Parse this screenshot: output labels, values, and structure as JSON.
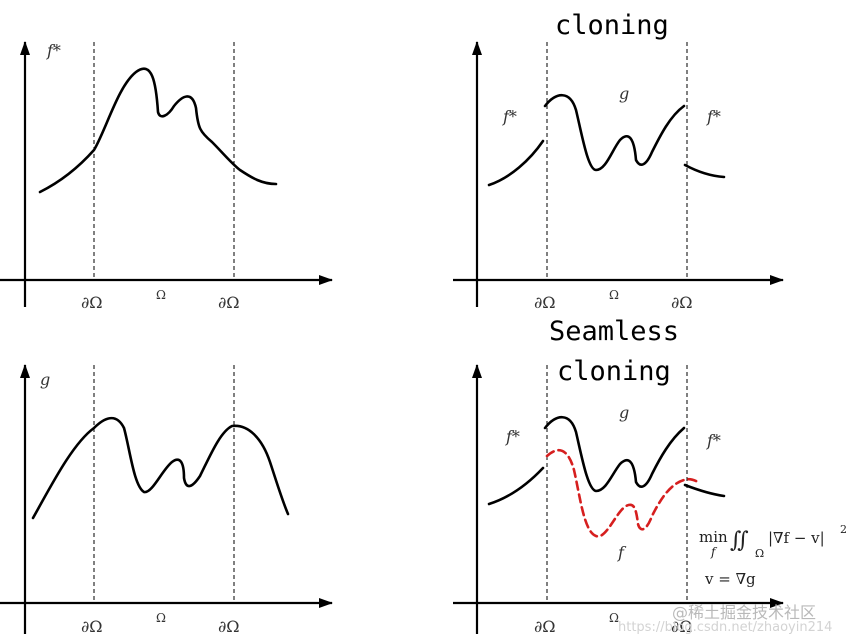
{
  "titles": {
    "top_right": "cloning",
    "bottom_right_line1": "Seamless",
    "bottom_right_line2": "cloning"
  },
  "labels": {
    "boundary": "∂Ω",
    "domain": "Ω",
    "f_star": "f*",
    "g": "g",
    "f": "f"
  },
  "equation": {
    "min": "min",
    "min_sub": "f",
    "integral": "∬",
    "integral_sub": "Ω",
    "body": "|∇f − v|",
    "power": "2",
    "constraint": "v = ∇g"
  },
  "watermark": {
    "brand": "@稀土掘金技术社区",
    "url": "https://blog.csdn.net/zhaoyin214"
  },
  "colors": {
    "curve": "#000000",
    "highlight": "#d61f1f",
    "watermark": "#b9b9b9"
  }
}
